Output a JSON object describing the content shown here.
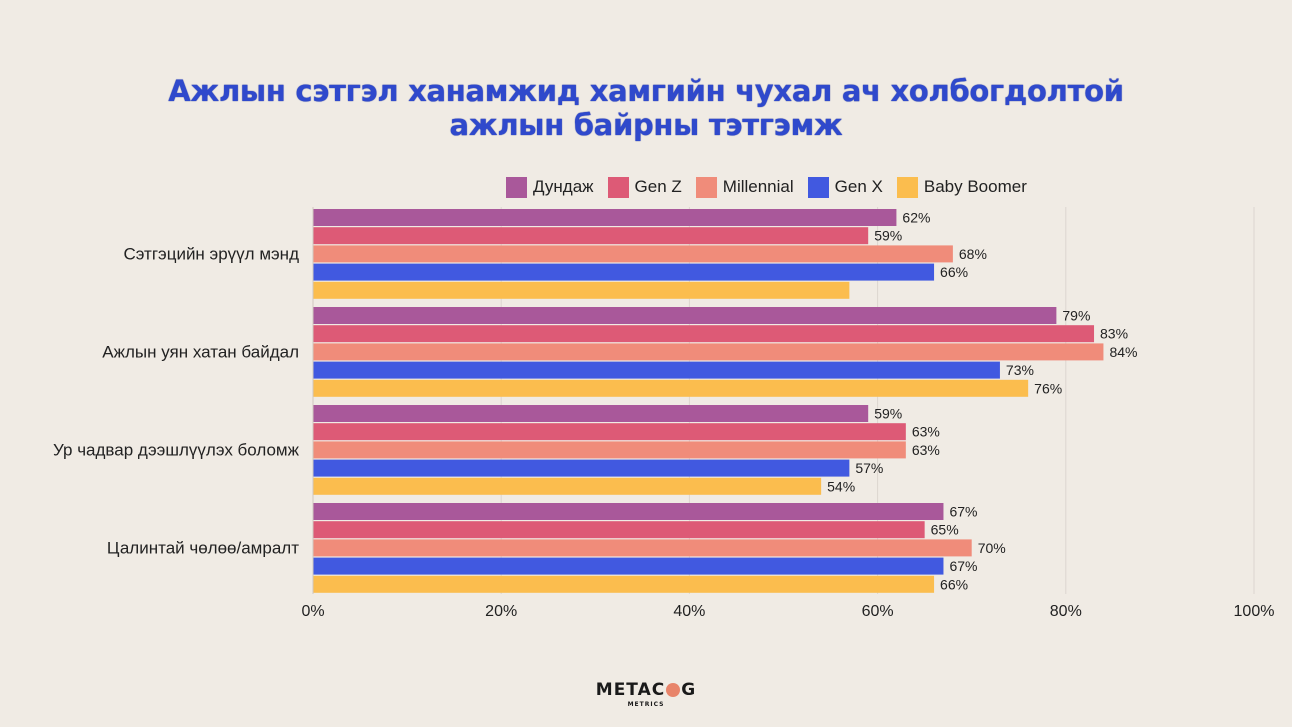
{
  "title_lines": [
    "Ажлын сэтгэл ханамжид хамгийн чухал ач холбогдолтой",
    "ажлын байрны тэтгэмж"
  ],
  "logo": {
    "main_left": "METAC",
    "main_right": "G",
    "sub": "METRICS",
    "icon": "brain-icon"
  },
  "colors": {
    "background": "#f0ebe4",
    "title": "#2f49cc",
    "gridline": "#ddd6cf"
  },
  "chart_data": {
    "type": "bar",
    "orientation": "horizontal",
    "categories": [
      "Сэтгэцийн эрүүл мэнд",
      "Ажлын уян хатан байдал",
      "Ур чадвар дээшлүүлэх боломж",
      "Цалинтай чөлөө/амралт"
    ],
    "series": [
      {
        "name": "Дундаж",
        "color": "#a9589a",
        "values": [
          62,
          79,
          59,
          67
        ],
        "labels": [
          "62%",
          "79%",
          "59%",
          "67%"
        ]
      },
      {
        "name": "Gen Z",
        "color": "#dd5a76",
        "values": [
          59,
          83,
          63,
          65
        ],
        "labels": [
          "59%",
          "83%",
          "63%",
          "65%"
        ]
      },
      {
        "name": "Millennial",
        "color": "#f08c7a",
        "values": [
          68,
          84,
          63,
          70
        ],
        "labels": [
          "68%",
          "84%",
          "63%",
          "70%"
        ]
      },
      {
        "name": "Gen X",
        "color": "#4159e0",
        "values": [
          66,
          73,
          57,
          67
        ],
        "labels": [
          "66%",
          "73%",
          "57%",
          "67%"
        ]
      },
      {
        "name": "Baby Boomer",
        "color": "#fbbd4e",
        "values": [
          57,
          76,
          54,
          66
        ],
        "labels": [
          "",
          "76%",
          "54%",
          "66%"
        ]
      }
    ],
    "xlim": [
      0,
      100
    ],
    "x_ticks": [
      0,
      20,
      40,
      60,
      80,
      100
    ],
    "x_tick_labels": [
      "0%",
      "20%",
      "40%",
      "60%",
      "80%",
      "100%"
    ],
    "grid": true,
    "legend_position": "top-right"
  }
}
